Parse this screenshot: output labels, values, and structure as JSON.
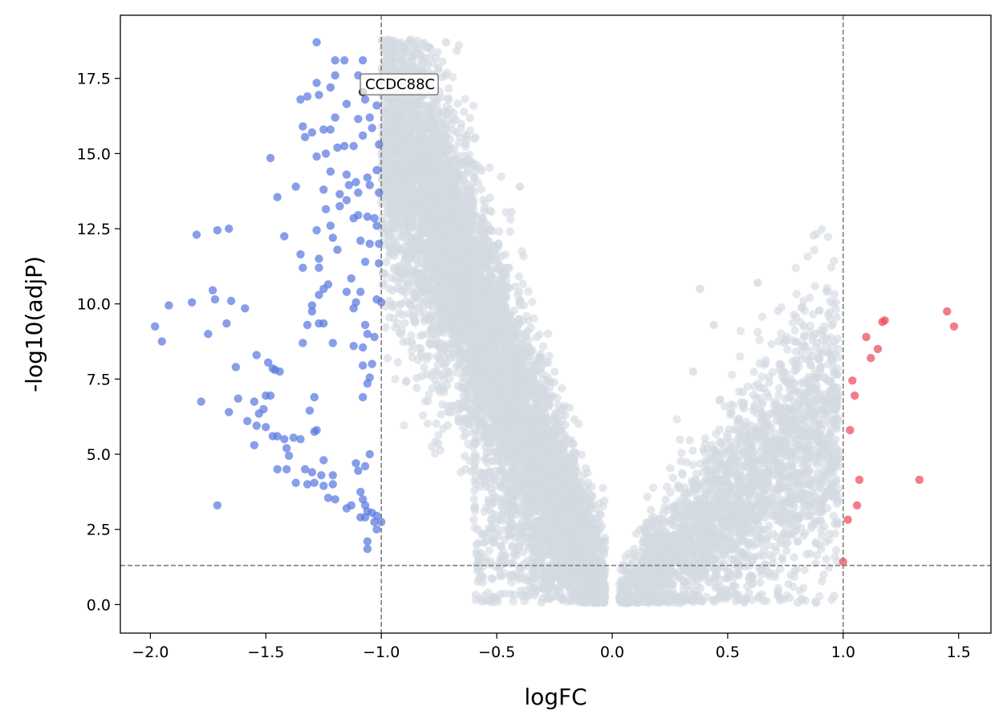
{
  "chart_data": {
    "type": "scatter",
    "title": "",
    "xlabel": "logFC",
    "ylabel": "-log10(adjP)",
    "xlim": [
      -2.13,
      1.64
    ],
    "ylim": [
      -0.95,
      19.6
    ],
    "x_ticks": [
      -2.0,
      -1.5,
      -1.0,
      -0.5,
      0.0,
      0.5,
      1.0,
      1.5
    ],
    "x_tick_labels": [
      "−2.0",
      "−1.5",
      "−1.0",
      "−0.5",
      "0.0",
      "0.5",
      "1.0",
      "1.5"
    ],
    "y_ticks": [
      0.0,
      2.5,
      5.0,
      7.5,
      10.0,
      12.5,
      15.0,
      17.5
    ],
    "y_tick_labels": [
      "0.0",
      "2.5",
      "5.0",
      "7.5",
      "10.0",
      "12.5",
      "15.0",
      "17.5"
    ],
    "grid": false,
    "thresholds": {
      "logFC": [
        -1.0,
        1.0
      ],
      "neg_log10_adjP": 1.301
    },
    "colors": {
      "down": "#5a78e0",
      "up": "#f04a5c",
      "ns": "#d3dae2",
      "threshold_line": "#808080"
    },
    "series": [
      {
        "name": "up",
        "color": "#f04a5c",
        "points": [
          [
            1.45,
            9.75
          ],
          [
            1.48,
            9.25
          ],
          [
            1.18,
            9.45
          ],
          [
            1.17,
            9.4
          ],
          [
            1.1,
            8.9
          ],
          [
            1.15,
            8.5
          ],
          [
            1.12,
            8.2
          ],
          [
            1.04,
            7.45
          ],
          [
            1.05,
            6.95
          ],
          [
            1.03,
            5.8
          ],
          [
            1.07,
            4.15
          ],
          [
            1.33,
            4.15
          ],
          [
            1.06,
            3.3
          ],
          [
            1.02,
            2.82
          ],
          [
            1.0,
            1.42
          ]
        ]
      },
      {
        "name": "down",
        "color": "#5a78e0",
        "points": [
          [
            -1.28,
            18.7
          ],
          [
            -1.2,
            18.1
          ],
          [
            -1.16,
            18.1
          ],
          [
            -1.08,
            18.1
          ],
          [
            -1.1,
            17.6
          ],
          [
            -1.2,
            17.6
          ],
          [
            -1.28,
            17.35
          ],
          [
            -1.22,
            17.2
          ],
          [
            -1.32,
            16.9
          ],
          [
            -1.35,
            16.8
          ],
          [
            -1.27,
            16.95
          ],
          [
            -1.15,
            16.65
          ],
          [
            -1.07,
            16.8
          ],
          [
            -1.02,
            16.6
          ],
          [
            -1.05,
            16.2
          ],
          [
            -1.2,
            16.2
          ],
          [
            -1.1,
            16.15
          ],
          [
            -1.34,
            15.9
          ],
          [
            -1.3,
            15.7
          ],
          [
            -1.25,
            15.8
          ],
          [
            -1.22,
            15.8
          ],
          [
            -1.33,
            15.55
          ],
          [
            -1.08,
            15.6
          ],
          [
            -1.04,
            15.85
          ],
          [
            -1.01,
            15.3
          ],
          [
            -1.16,
            15.25
          ],
          [
            -1.12,
            15.25
          ],
          [
            -1.24,
            15.0
          ],
          [
            -1.19,
            15.2
          ],
          [
            -1.48,
            14.85
          ],
          [
            -1.28,
            14.9
          ],
          [
            -1.22,
            14.4
          ],
          [
            -1.15,
            14.3
          ],
          [
            -1.02,
            14.45
          ],
          [
            -1.06,
            14.2
          ],
          [
            -1.11,
            14.05
          ],
          [
            -1.05,
            13.95
          ],
          [
            -1.14,
            13.95
          ],
          [
            -1.37,
            13.9
          ],
          [
            -1.18,
            13.65
          ],
          [
            -1.25,
            13.8
          ],
          [
            -1.45,
            13.55
          ],
          [
            -1.1,
            13.7
          ],
          [
            -1.15,
            13.45
          ],
          [
            -1.01,
            13.7
          ],
          [
            -1.18,
            13.25
          ],
          [
            -1.24,
            13.15
          ],
          [
            -1.1,
            12.95
          ],
          [
            -1.06,
            12.9
          ],
          [
            -1.03,
            12.85
          ],
          [
            -1.12,
            12.85
          ],
          [
            -1.22,
            12.6
          ],
          [
            -1.28,
            12.45
          ],
          [
            -1.02,
            12.6
          ],
          [
            -1.8,
            12.3
          ],
          [
            -1.71,
            12.45
          ],
          [
            -1.66,
            12.5
          ],
          [
            -1.42,
            12.25
          ],
          [
            -1.21,
            12.2
          ],
          [
            -1.09,
            12.1
          ],
          [
            -1.05,
            12.0
          ],
          [
            -1.01,
            12.0
          ],
          [
            -1.19,
            11.8
          ],
          [
            -1.35,
            11.65
          ],
          [
            -1.27,
            11.5
          ],
          [
            -1.07,
            11.4
          ],
          [
            -1.01,
            11.35
          ],
          [
            -1.34,
            11.2
          ],
          [
            -1.27,
            11.2
          ],
          [
            -1.13,
            10.85
          ],
          [
            -1.23,
            10.65
          ],
          [
            -1.25,
            10.5
          ],
          [
            -1.15,
            10.4
          ],
          [
            -1.09,
            10.4
          ],
          [
            -1.27,
            10.3
          ],
          [
            -1.73,
            10.45
          ],
          [
            -1.92,
            9.95
          ],
          [
            -1.82,
            10.05
          ],
          [
            -1.72,
            10.15
          ],
          [
            -1.65,
            10.1
          ],
          [
            -1.59,
            9.85
          ],
          [
            -1.3,
            9.95
          ],
          [
            -1.11,
            10.05
          ],
          [
            -1.02,
            10.15
          ],
          [
            -1.0,
            10.05
          ],
          [
            -1.12,
            9.85
          ],
          [
            -1.3,
            9.75
          ],
          [
            -1.27,
            9.35
          ],
          [
            -1.25,
            9.35
          ],
          [
            -1.32,
            9.3
          ],
          [
            -1.07,
            9.3
          ],
          [
            -1.98,
            9.25
          ],
          [
            -1.67,
            9.35
          ],
          [
            -1.75,
            9.0
          ],
          [
            -1.95,
            8.75
          ],
          [
            -1.34,
            8.7
          ],
          [
            -1.21,
            8.7
          ],
          [
            -1.03,
            8.9
          ],
          [
            -1.06,
            9.0
          ],
          [
            -1.12,
            8.6
          ],
          [
            -1.08,
            8.55
          ],
          [
            -1.54,
            8.3
          ],
          [
            -1.49,
            8.05
          ],
          [
            -1.47,
            7.85
          ],
          [
            -1.44,
            7.75
          ],
          [
            -1.46,
            7.8
          ],
          [
            -1.63,
            7.9
          ],
          [
            -1.08,
            7.95
          ],
          [
            -1.04,
            8.0
          ],
          [
            -1.05,
            7.55
          ],
          [
            -1.06,
            7.35
          ],
          [
            -1.78,
            6.75
          ],
          [
            -1.62,
            6.85
          ],
          [
            -1.55,
            6.75
          ],
          [
            -1.5,
            6.95
          ],
          [
            -1.48,
            6.95
          ],
          [
            -1.29,
            6.9
          ],
          [
            -1.08,
            6.9
          ],
          [
            -1.66,
            6.4
          ],
          [
            -1.58,
            6.1
          ],
          [
            -1.53,
            6.35
          ],
          [
            -1.51,
            6.5
          ],
          [
            -1.31,
            6.45
          ],
          [
            -1.54,
            5.95
          ],
          [
            -1.5,
            5.9
          ],
          [
            -1.47,
            5.6
          ],
          [
            -1.45,
            5.6
          ],
          [
            -1.42,
            5.5
          ],
          [
            -1.38,
            5.55
          ],
          [
            -1.35,
            5.5
          ],
          [
            -1.29,
            5.75
          ],
          [
            -1.28,
            5.8
          ],
          [
            -1.55,
            5.3
          ],
          [
            -1.41,
            5.2
          ],
          [
            -1.4,
            4.95
          ],
          [
            -1.25,
            4.8
          ],
          [
            -1.11,
            4.7
          ],
          [
            -1.07,
            4.6
          ],
          [
            -1.05,
            5.0
          ],
          [
            -1.45,
            4.5
          ],
          [
            -1.41,
            4.5
          ],
          [
            -1.33,
            4.5
          ],
          [
            -1.3,
            4.4
          ],
          [
            -1.26,
            4.3
          ],
          [
            -1.1,
            4.45
          ],
          [
            -1.37,
            4.05
          ],
          [
            -1.32,
            4.0
          ],
          [
            -1.29,
            4.05
          ],
          [
            -1.25,
            3.95
          ],
          [
            -1.21,
            4.0
          ],
          [
            -1.21,
            4.3
          ],
          [
            -1.23,
            3.55
          ],
          [
            -1.2,
            3.5
          ],
          [
            -1.15,
            3.2
          ],
          [
            -1.13,
            3.3
          ],
          [
            -1.09,
            3.75
          ],
          [
            -1.08,
            3.5
          ],
          [
            -1.07,
            3.3
          ],
          [
            -1.06,
            3.1
          ],
          [
            -1.04,
            3.05
          ],
          [
            -1.02,
            2.95
          ],
          [
            -1.03,
            2.75
          ],
          [
            -1.0,
            2.75
          ],
          [
            -1.07,
            2.9
          ],
          [
            -1.09,
            2.9
          ],
          [
            -1.02,
            2.5
          ],
          [
            -1.71,
            3.3
          ],
          [
            -1.06,
            2.1
          ],
          [
            -1.06,
            1.85
          ]
        ]
      }
    ],
    "ns_count": 9000,
    "annotations": [
      {
        "label": "CCDC88C",
        "x": -1.08,
        "y": 17.05,
        "text_x": -1.07,
        "text_y": 17.3
      }
    ]
  }
}
